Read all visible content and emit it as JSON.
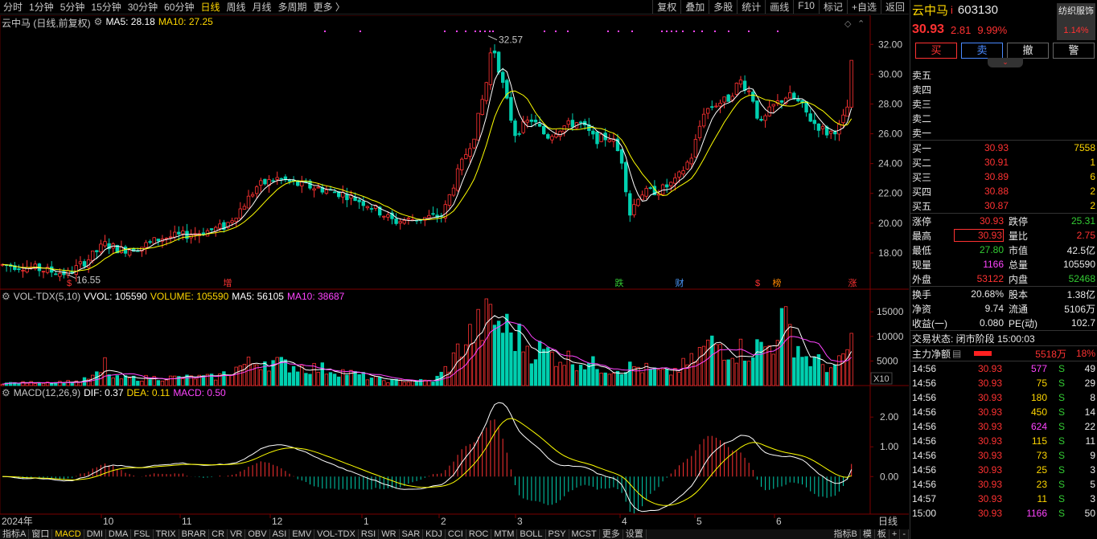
{
  "toolbar": {
    "tabs": [
      "分时",
      "1分钟",
      "5分钟",
      "15分钟",
      "30分钟",
      "60分钟",
      "日线",
      "周线",
      "月线",
      "多周期",
      "更多 〉"
    ],
    "active_tab": "日线",
    "tools": [
      "复权",
      "叠加",
      "多股",
      "统计",
      "画线",
      "F10",
      "标记",
      "+自选",
      "返回"
    ]
  },
  "main_panel": {
    "stock_label": "云中马 (日线,前复权)",
    "ma5": "MA5: 28.18",
    "ma10": "MA10: 27.25",
    "max_price_label": "32.57",
    "min_price_label": "16.55",
    "y_ticks": [
      "32.00",
      "30.00",
      "28.00",
      "26.00",
      "24.00",
      "22.00",
      "20.00",
      "18.00"
    ],
    "markers": [
      "$",
      "增",
      "跌",
      "财",
      "$",
      "榜",
      "涨"
    ]
  },
  "volume_panel": {
    "title": "VOL-TDX(5,10)",
    "vvol": "VVOL: 105590",
    "volume": "VOLUME: 105590",
    "ma5": "MA5: 56105",
    "ma10": "MA10: 38687",
    "y_ticks": [
      "15000",
      "10000",
      "5000"
    ],
    "unit": "X10"
  },
  "macd_panel": {
    "title": "MACD(12,26,9)",
    "dif": "DIF: 0.37",
    "dea": "DEA: 0.11",
    "macd": "MACD: 0.50",
    "y_ticks": [
      "2.00",
      "1.00",
      "0.00"
    ]
  },
  "x_axis": {
    "year": "2024年",
    "months": [
      "10",
      "11",
      "12",
      "1",
      "2",
      "3",
      "4",
      "5",
      "6"
    ],
    "period": "日线"
  },
  "bottom_tabs": [
    "指标A",
    "窗口",
    "MACD",
    "DMI",
    "DMA",
    "FSL",
    "TRIX",
    "BRAR",
    "CR",
    "VR",
    "OBV",
    "ASI",
    "EMV",
    "VOL-TDX",
    "RSI",
    "WR",
    "SAR",
    "KDJ",
    "CCI",
    "ROC",
    "MTM",
    "BOLL",
    "PSY",
    "MCST",
    "更多",
    "设置"
  ],
  "bottom_right": [
    "指标B",
    "模",
    "板",
    "+",
    "-"
  ],
  "quote": {
    "name": "云中马",
    "flag": "i",
    "code": "603130",
    "sector": "纺织服饰",
    "sector_change": "1.14%",
    "price": "30.93",
    "change": "2.81",
    "change_pct": "9.99%",
    "buttons": [
      "买",
      "卖",
      "撤",
      "警"
    ],
    "sell_levels": [
      "卖五",
      "卖四",
      "卖三",
      "卖二",
      "卖一"
    ],
    "buy_levels": [
      {
        "label": "买一",
        "price": "30.93",
        "vol": "7558"
      },
      {
        "label": "买二",
        "price": "30.91",
        "vol": "1"
      },
      {
        "label": "买三",
        "price": "30.89",
        "vol": "6"
      },
      {
        "label": "买四",
        "price": "30.88",
        "vol": "2"
      },
      {
        "label": "买五",
        "price": "30.87",
        "vol": "2"
      }
    ],
    "stats": [
      {
        "l1": "涨停",
        "v1": "30.93",
        "l2": "跌停",
        "v2": "25.31"
      },
      {
        "l1": "最高",
        "v1": "30.93",
        "l2": "量比",
        "v2": "2.75"
      },
      {
        "l1": "最低",
        "v1": "27.80",
        "l2": "市值",
        "v2": "42.5亿"
      },
      {
        "l1": "现量",
        "v1": "1166",
        "l2": "总量",
        "v2": "105590"
      },
      {
        "l1": "外盘",
        "v1": "53122",
        "l2": "内盘",
        "v2": "52468"
      }
    ],
    "stats2": [
      {
        "l1": "换手",
        "v1": "20.68%",
        "l2": "股本",
        "v2": "1.38亿"
      },
      {
        "l1": "净资",
        "v1": "9.74",
        "l2": "流通",
        "v2": "5106万"
      },
      {
        "l1": "收益(一)",
        "v1": "0.080",
        "l2": "PE(动)",
        "v2": "102.7"
      }
    ],
    "status": "交易状态: 闭市阶段 15:00:03",
    "main_flow_label": "主力净额",
    "main_flow_value": "5518万",
    "main_flow_pct": "18%",
    "ticks": [
      {
        "t": "14:56",
        "p": "30.93",
        "v": "577",
        "s": "S",
        "n": "49"
      },
      {
        "t": "14:56",
        "p": "30.93",
        "v": "75",
        "s": "S",
        "n": "29"
      },
      {
        "t": "14:56",
        "p": "30.93",
        "v": "180",
        "s": "S",
        "n": "8"
      },
      {
        "t": "14:56",
        "p": "30.93",
        "v": "450",
        "s": "S",
        "n": "14"
      },
      {
        "t": "14:56",
        "p": "30.93",
        "v": "624",
        "s": "S",
        "n": "22"
      },
      {
        "t": "14:56",
        "p": "30.93",
        "v": "115",
        "s": "S",
        "n": "11"
      },
      {
        "t": "14:56",
        "p": "30.93",
        "v": "73",
        "s": "S",
        "n": "9"
      },
      {
        "t": "14:56",
        "p": "30.93",
        "v": "25",
        "s": "S",
        "n": "3"
      },
      {
        "t": "14:56",
        "p": "30.93",
        "v": "23",
        "s": "S",
        "n": "5"
      },
      {
        "t": "14:57",
        "p": "30.93",
        "v": "11",
        "s": "S",
        "n": "3"
      },
      {
        "t": "15:00",
        "p": "30.93",
        "v": "1166",
        "s": "S",
        "n": "50"
      }
    ]
  },
  "colors": {
    "up": "#ff3232",
    "down": "#00d0b0",
    "ma5": "#ffffff",
    "ma10": "#ffff00",
    "ma_vol10": "#ff44ff",
    "accent": "#ffd700"
  }
}
